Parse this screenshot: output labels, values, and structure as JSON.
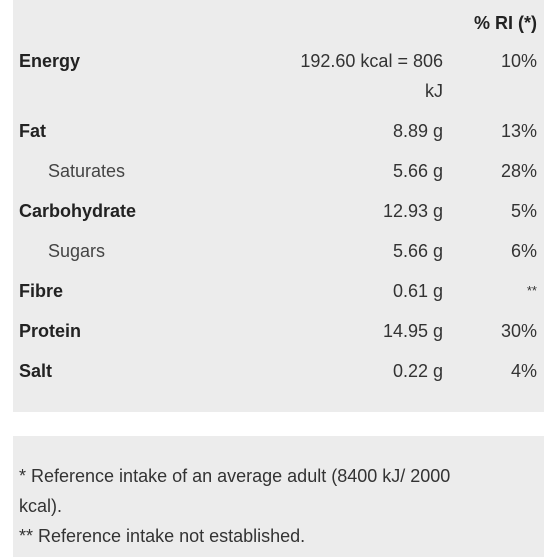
{
  "header": {
    "ri_label": "% RI (*)"
  },
  "rows": [
    {
      "name": "Energy",
      "amount": "192.60 kcal = 806",
      "amount_cont": "kJ",
      "ri": "10%"
    },
    {
      "name": "Fat",
      "amount": "8.89 g",
      "ri": "13%"
    },
    {
      "name": "Saturates",
      "amount": "5.66 g",
      "ri": "28%"
    },
    {
      "name": "Carbohydrate",
      "amount": "12.93 g",
      "ri": "5%"
    },
    {
      "name": "Sugars",
      "amount": "5.66 g",
      "ri": "6%"
    },
    {
      "name": "Fibre",
      "amount": "0.61 g",
      "ri": "**"
    },
    {
      "name": "Protein",
      "amount": "14.95 g",
      "ri": "30%"
    },
    {
      "name": "Salt",
      "amount": "0.22 g",
      "ri": "4%"
    }
  ],
  "notes": {
    "line1": "* Reference intake of an average adult (8400 kJ/ 2000",
    "line2": "kcal).",
    "line3": "** Reference intake not established."
  }
}
